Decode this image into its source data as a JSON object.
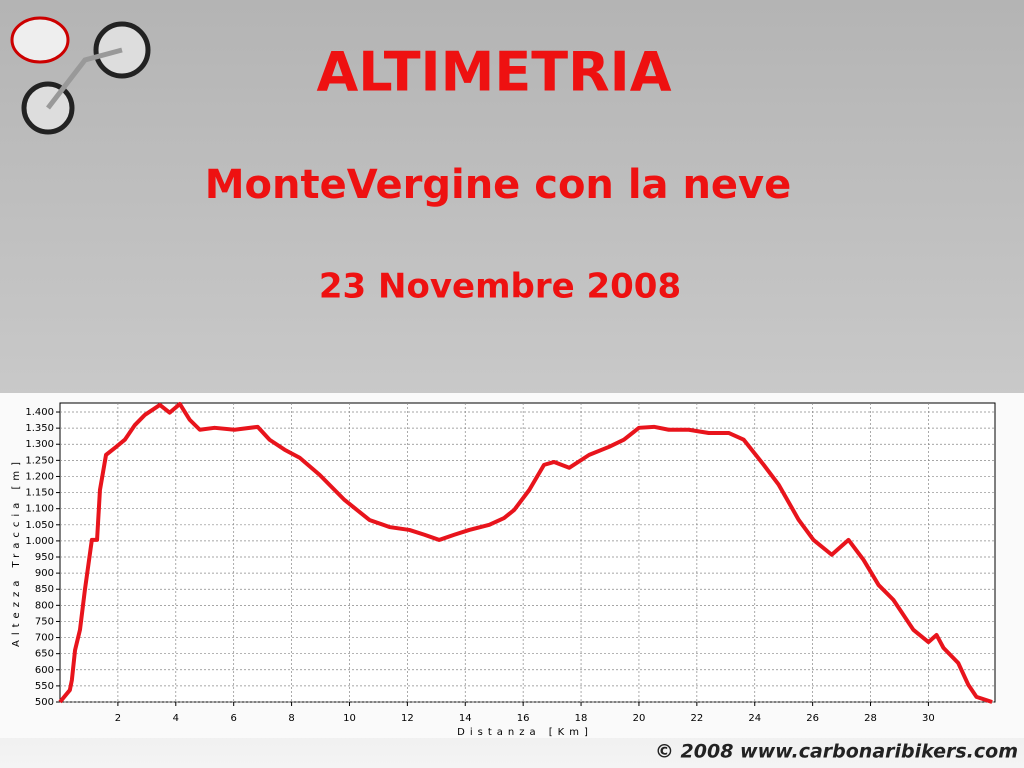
{
  "chart_data": {
    "type": "line",
    "title": "ALTIMETRIA",
    "subtitle": "MonteVergine con la neve",
    "date": "23 Novembre 2008",
    "footer": "© 2008 www.carbonaribikers.com",
    "x_label": "Distanza [Km]",
    "y_label": "Altezza Traccia [m]",
    "xlim": [
      0,
      32.3
    ],
    "xticks": [
      2,
      4,
      6,
      8,
      10,
      12,
      14,
      16,
      18,
      20,
      22,
      24,
      26,
      28,
      30
    ],
    "ylim": [
      500,
      1428
    ],
    "yticks": [
      500,
      550,
      600,
      650,
      700,
      750,
      800,
      850,
      900,
      950,
      {
        "value": 1000,
        "label": "1.000"
      },
      {
        "value": 1050,
        "label": "1.050"
      },
      {
        "value": 1100,
        "label": "1.100"
      },
      {
        "value": 1150,
        "label": "1.150"
      },
      {
        "value": 1200,
        "label": "1.200"
      },
      {
        "value": 1250,
        "label": "1.250"
      },
      {
        "value": 1300,
        "label": "1.300"
      },
      {
        "value": 1350,
        "label": "1.350"
      },
      {
        "value": 1400,
        "label": "1.400"
      }
    ],
    "grid": true,
    "x": [
      0,
      0.34,
      0.41,
      0.52,
      0.69,
      0.86,
      1.1,
      1.28,
      1.38,
      1.59,
      1.9,
      2.24,
      2.59,
      2.93,
      3.45,
      3.79,
      4.14,
      4.48,
      4.83,
      5.34,
      6.03,
      6.83,
      7.24,
      7.76,
      8.28,
      8.97,
      9.83,
      10.69,
      11.38,
      12.07,
      12.59,
      13.1,
      13.62,
      14.14,
      14.83,
      15.34,
      15.69,
      16.21,
      16.72,
      17.07,
      17.59,
      18.28,
      18.97,
      19.48,
      20.0,
      20.52,
      21.03,
      21.72,
      22.41,
      23.1,
      23.62,
      24.31,
      24.83,
      25.52,
      26.03,
      26.66,
      27.24,
      27.76,
      28.28,
      28.79,
      29.48,
      30.0,
      30.28,
      30.52,
      31.03,
      31.38,
      31.66,
      32.2
    ],
    "series": [
      {
        "color": "#e8141c",
        "values": [
          500,
          537,
          568,
          661,
          724,
          848,
          1003,
          1003,
          1158,
          1267,
          1289,
          1314,
          1360,
          1391,
          1422,
          1398,
          1425,
          1376,
          1345,
          1351,
          1345,
          1354,
          1314,
          1283,
          1258,
          1205,
          1127,
          1065,
          1043,
          1034,
          1019,
          1003,
          1019,
          1034,
          1050,
          1071,
          1096,
          1158,
          1236,
          1245,
          1227,
          1267,
          1292,
          1314,
          1351,
          1354,
          1345,
          1345,
          1335,
          1335,
          1314,
          1236,
          1174,
          1065,
          1003,
          957,
          1003,
          941,
          863,
          817,
          724,
          686,
          708,
          668,
          621,
          553,
          516,
          500
        ]
      }
    ]
  }
}
